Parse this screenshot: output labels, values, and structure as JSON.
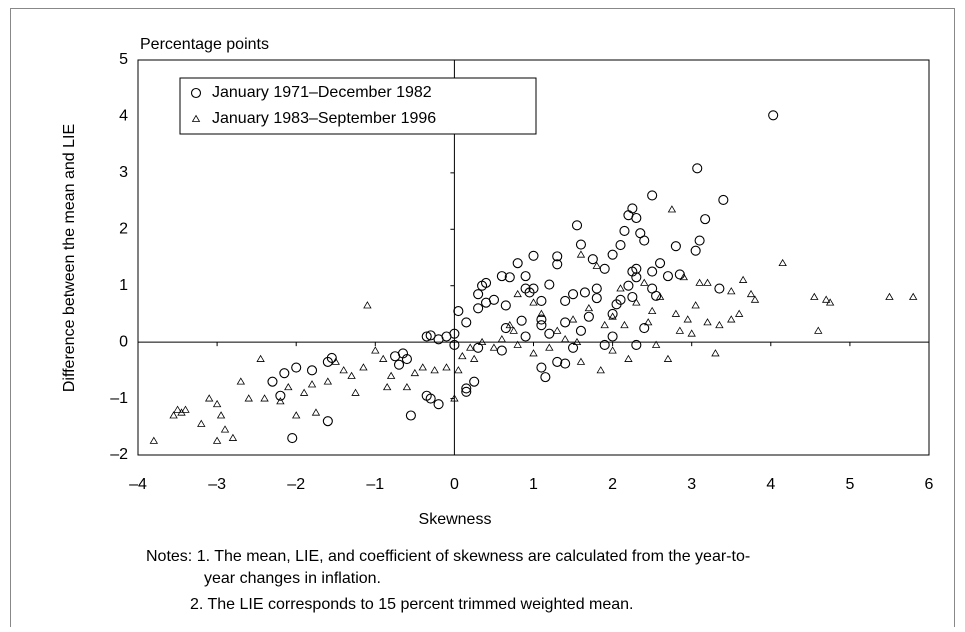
{
  "chart_data": {
    "type": "scatter",
    "title": "Percentage points",
    "xlabel": "Skewness",
    "ylabel": "Difference between the mean and LIE",
    "xlim": [
      -4,
      6
    ],
    "ylim": [
      -2,
      5
    ],
    "xticks": [
      {
        "value": -4,
        "label": "–4"
      },
      {
        "value": -3,
        "label": "–3"
      },
      {
        "value": -2,
        "label": "–2"
      },
      {
        "value": -1,
        "label": "–1"
      },
      0,
      1,
      2,
      3,
      4,
      5,
      6
    ],
    "yticks": [
      {
        "value": -2,
        "label": "–2"
      },
      {
        "value": -1,
        "label": "–1"
      },
      0,
      1,
      2,
      3,
      4,
      5
    ],
    "series": [
      {
        "name": "January 1971–December 1982",
        "marker": "circle",
        "color": "#000000",
        "x": [
          4.03,
          3.07,
          3.4,
          3.17,
          2.5,
          2.25,
          2.2,
          2.3,
          1.55,
          2.15,
          2.35,
          2.4,
          2.1,
          2.8,
          3.1,
          3.05,
          1.6,
          1.3,
          1.0,
          0.8,
          0.6,
          0.7,
          0.9,
          1.3,
          1.75,
          2.0,
          2.3,
          2.25,
          2.3,
          2.5,
          2.6,
          2.7,
          2.85,
          2.5,
          2.2,
          1.9,
          1.8,
          1.65,
          1.5,
          1.2,
          1.0,
          0.9,
          0.4,
          0.35,
          0.3,
          0.4,
          0.5,
          0.65,
          0.95,
          1.1,
          1.4,
          1.8,
          2.05,
          2.1,
          2.25,
          2.55,
          3.35,
          2.0,
          1.7,
          1.4,
          1.1,
          0.85,
          0.65,
          0.3,
          0.15,
          0.05,
          0.0,
          -0.1,
          -0.2,
          -0.3,
          -0.35,
          0.0,
          0.3,
          0.6,
          0.9,
          1.1,
          1.2,
          1.6,
          1.9,
          2.0,
          2.3,
          2.4,
          1.3,
          1.4,
          1.1,
          1.15,
          1.5,
          0.15,
          0.15,
          0.25,
          -0.35,
          -0.3,
          -0.2,
          -0.55,
          -0.6,
          -0.65,
          -0.75,
          -0.7,
          -1.6,
          -1.8,
          -1.55,
          -1.6,
          -2.0,
          -2.15,
          -2.3,
          -2.2,
          -2.05
        ],
        "values": [
          4.02,
          3.08,
          2.52,
          2.18,
          2.6,
          2.37,
          2.25,
          2.2,
          2.07,
          1.97,
          1.93,
          1.8,
          1.72,
          1.7,
          1.8,
          1.62,
          1.73,
          1.52,
          1.53,
          1.4,
          1.17,
          1.15,
          1.17,
          1.38,
          1.47,
          1.55,
          1.3,
          1.25,
          1.15,
          1.25,
          1.4,
          1.17,
          1.2,
          0.95,
          1.0,
          1.3,
          0.95,
          0.88,
          0.85,
          1.02,
          0.95,
          0.95,
          1.05,
          1.0,
          0.85,
          0.7,
          0.75,
          0.65,
          0.88,
          0.73,
          0.73,
          0.78,
          0.67,
          0.75,
          0.8,
          0.82,
          0.95,
          0.5,
          0.45,
          0.35,
          0.4,
          0.38,
          0.25,
          0.6,
          0.35,
          0.55,
          0.15,
          0.1,
          0.05,
          0.12,
          0.1,
          -0.05,
          -0.1,
          -0.15,
          0.1,
          0.3,
          0.15,
          0.2,
          -0.05,
          0.1,
          -0.05,
          0.25,
          -0.35,
          -0.38,
          -0.45,
          -0.62,
          -0.1,
          -0.82,
          -0.88,
          -0.7,
          -0.95,
          -1.0,
          -1.1,
          -1.3,
          -0.3,
          -0.2,
          -0.25,
          -0.4,
          -1.4,
          -0.5,
          -0.28,
          -0.35,
          -0.45,
          -0.55,
          -0.7,
          -0.95,
          -1.7
        ]
      },
      {
        "name": "January 1983–September 1996",
        "marker": "triangle",
        "color": "#000000",
        "x": [
          -3.8,
          -3.5,
          -3.45,
          -3.55,
          -3.4,
          -3.1,
          -3.0,
          -3.2,
          -3.0,
          -2.8,
          -2.9,
          -2.95,
          -2.7,
          -2.6,
          -2.45,
          -2.4,
          -2.2,
          -2.1,
          -2.0,
          -1.9,
          -1.8,
          -1.75,
          -1.6,
          -1.5,
          -1.4,
          -1.3,
          -1.25,
          -1.15,
          -1.1,
          -1.0,
          -0.9,
          -0.85,
          -0.8,
          -0.6,
          -0.5,
          -0.4,
          -0.25,
          -0.1,
          0.05,
          0.1,
          0.2,
          0.35,
          0.5,
          0.6,
          0.7,
          0.75,
          0.8,
          0.8,
          1.0,
          1.1,
          1.2,
          1.3,
          1.4,
          1.5,
          1.6,
          1.6,
          1.7,
          1.8,
          1.85,
          1.9,
          2.0,
          2.0,
          2.1,
          2.15,
          2.2,
          2.3,
          2.4,
          2.45,
          2.5,
          2.55,
          2.6,
          2.7,
          2.75,
          2.8,
          2.85,
          2.9,
          2.95,
          3.0,
          3.05,
          3.1,
          3.2,
          3.2,
          3.3,
          3.35,
          3.5,
          3.5,
          3.6,
          3.65,
          3.75,
          3.8,
          4.15,
          4.55,
          4.6,
          4.7,
          4.75,
          5.5,
          5.8,
          0.0,
          0.25,
          1.0,
          1.55
        ],
        "values": [
          -1.75,
          -1.2,
          -1.25,
          -1.3,
          -1.2,
          -1.0,
          -1.1,
          -1.45,
          -1.75,
          -1.7,
          -1.55,
          -1.3,
          -0.7,
          -1.0,
          -0.3,
          -1.0,
          -1.05,
          -0.8,
          -1.3,
          -0.9,
          -0.75,
          -1.25,
          -0.7,
          -0.35,
          -0.5,
          -0.6,
          -0.9,
          -0.45,
          0.65,
          -0.15,
          -0.3,
          -0.8,
          -0.6,
          -0.8,
          -0.55,
          -0.45,
          -0.5,
          -0.45,
          -0.5,
          -0.25,
          -0.1,
          0.0,
          -0.1,
          0.05,
          0.3,
          0.2,
          -0.05,
          0.85,
          0.7,
          0.5,
          -0.1,
          0.2,
          0.05,
          0.4,
          1.55,
          -0.35,
          0.6,
          1.35,
          -0.5,
          0.3,
          -0.15,
          0.45,
          0.95,
          0.3,
          -0.3,
          0.7,
          1.05,
          0.35,
          0.55,
          -0.05,
          0.8,
          -0.3,
          2.35,
          0.5,
          0.2,
          1.15,
          0.4,
          0.15,
          0.65,
          1.05,
          1.05,
          0.35,
          -0.2,
          0.3,
          0.4,
          0.9,
          0.5,
          1.1,
          0.85,
          0.75,
          1.4,
          0.8,
          0.2,
          0.75,
          0.7,
          0.8,
          0.8,
          -1.0,
          -0.3,
          -0.2,
          0.0
        ]
      }
    ],
    "legend_position": "upper left",
    "notes": [
      "Notes: 1. The mean, LIE, and coefficient of skewness are calculated from the year-to-",
      "year changes in inflation.",
      "2. The LIE corresponds to 15 percent trimmed weighted mean."
    ]
  }
}
